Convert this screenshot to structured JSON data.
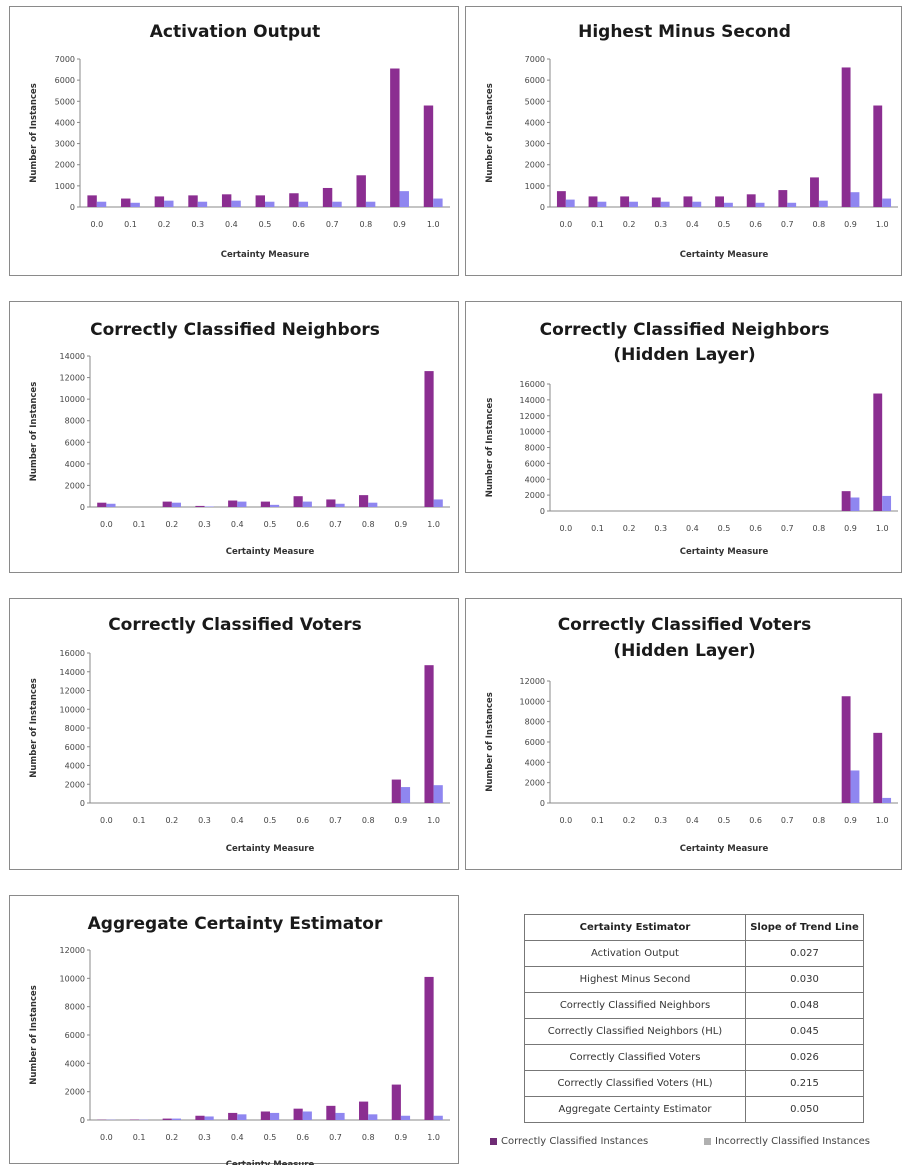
{
  "colors": {
    "correct": "#8b2e91",
    "incorrect": "#8f86f0",
    "axis": "#888888"
  },
  "chart_data": [
    {
      "type": "bar",
      "title": [
        "Activation Output"
      ],
      "xlabel": "Certainty Measure",
      "ylabel": "Number of Instances",
      "categories": [
        "0.0",
        "0.1",
        "0.2",
        "0.3",
        "0.4",
        "0.5",
        "0.6",
        "0.7",
        "0.8",
        "0.9",
        "1.0"
      ],
      "ylim": [
        0,
        7000
      ],
      "yticks": [
        0,
        1000,
        2000,
        3000,
        4000,
        5000,
        6000,
        7000
      ],
      "series": [
        {
          "name": "Correctly Classified Instances",
          "values": [
            550,
            400,
            500,
            550,
            600,
            550,
            650,
            900,
            1500,
            6550,
            4800
          ]
        },
        {
          "name": "Incorrectly Classified Instances",
          "values": [
            250,
            200,
            300,
            250,
            300,
            250,
            250,
            250,
            250,
            750,
            400
          ]
        }
      ]
    },
    {
      "type": "bar",
      "title": [
        "Highest Minus Second"
      ],
      "xlabel": "Certainty Measure",
      "ylabel": "Number of Instances",
      "categories": [
        "0.0",
        "0.1",
        "0.2",
        "0.3",
        "0.4",
        "0.5",
        "0.6",
        "0.7",
        "0.8",
        "0.9",
        "1.0"
      ],
      "ylim": [
        0,
        7000
      ],
      "yticks": [
        0,
        1000,
        2000,
        3000,
        4000,
        5000,
        6000,
        7000
      ],
      "series": [
        {
          "name": "Correctly Classified Instances",
          "values": [
            750,
            500,
            500,
            450,
            500,
            500,
            600,
            800,
            1400,
            6600,
            4800
          ]
        },
        {
          "name": "Incorrectly Classified Instances",
          "values": [
            350,
            250,
            250,
            250,
            250,
            200,
            200,
            200,
            300,
            700,
            400
          ]
        }
      ]
    },
    {
      "type": "bar",
      "title": [
        "Correctly Classified Neighbors"
      ],
      "xlabel": "Certainty Measure",
      "ylabel": "Number of Instances",
      "categories": [
        "0.0",
        "0.1",
        "0.2",
        "0.3",
        "0.4",
        "0.5",
        "0.6",
        "0.7",
        "0.8",
        "0.9",
        "1.0"
      ],
      "ylim": [
        0,
        14000
      ],
      "yticks": [
        0,
        2000,
        4000,
        6000,
        8000,
        10000,
        12000,
        14000
      ],
      "series": [
        {
          "name": "Correctly Classified Instances",
          "values": [
            400,
            0,
            500,
            100,
            600,
            500,
            1000,
            700,
            1100,
            0,
            12600
          ]
        },
        {
          "name": "Incorrectly Classified Instances",
          "values": [
            300,
            0,
            400,
            50,
            500,
            200,
            500,
            300,
            400,
            0,
            700
          ]
        }
      ]
    },
    {
      "type": "bar",
      "title": [
        "Correctly Classified Neighbors",
        "(Hidden Layer)"
      ],
      "xlabel": "Certainty Measure",
      "ylabel": "Number of Instances",
      "categories": [
        "0.0",
        "0.1",
        "0.2",
        "0.3",
        "0.4",
        "0.5",
        "0.6",
        "0.7",
        "0.8",
        "0.9",
        "1.0"
      ],
      "ylim": [
        0,
        16000
      ],
      "yticks": [
        0,
        2000,
        4000,
        6000,
        8000,
        10000,
        12000,
        14000,
        16000
      ],
      "series": [
        {
          "name": "Correctly Classified Instances",
          "values": [
            0,
            0,
            0,
            0,
            0,
            0,
            0,
            0,
            0,
            2500,
            14800
          ]
        },
        {
          "name": "Incorrectly Classified Instances",
          "values": [
            0,
            0,
            0,
            0,
            0,
            0,
            0,
            0,
            0,
            1700,
            1900
          ]
        }
      ]
    },
    {
      "type": "bar",
      "title": [
        "Correctly Classified Voters"
      ],
      "xlabel": "Certainty Measure",
      "ylabel": "Number of Instances",
      "categories": [
        "0.0",
        "0.1",
        "0.2",
        "0.3",
        "0.4",
        "0.5",
        "0.6",
        "0.7",
        "0.8",
        "0.9",
        "1.0"
      ],
      "ylim": [
        0,
        16000
      ],
      "yticks": [
        0,
        2000,
        4000,
        6000,
        8000,
        10000,
        12000,
        14000,
        16000
      ],
      "series": [
        {
          "name": "Correctly Classified Instances",
          "values": [
            0,
            0,
            0,
            0,
            0,
            0,
            0,
            0,
            0,
            2500,
            14700
          ]
        },
        {
          "name": "Incorrectly Classified Instances",
          "values": [
            0,
            0,
            0,
            0,
            0,
            0,
            0,
            0,
            0,
            1700,
            1900
          ]
        }
      ]
    },
    {
      "type": "bar",
      "title": [
        "Correctly Classified Voters",
        "(Hidden Layer)"
      ],
      "xlabel": "Certainty Measure",
      "ylabel": "Number of Instances",
      "categories": [
        "0.0",
        "0.1",
        "0.2",
        "0.3",
        "0.4",
        "0.5",
        "0.6",
        "0.7",
        "0.8",
        "0.9",
        "1.0"
      ],
      "ylim": [
        0,
        12000
      ],
      "yticks": [
        0,
        2000,
        4000,
        6000,
        8000,
        10000,
        12000
      ],
      "series": [
        {
          "name": "Correctly Classified Instances",
          "values": [
            0,
            0,
            0,
            0,
            0,
            0,
            0,
            0,
            0,
            10500,
            6900
          ]
        },
        {
          "name": "Incorrectly Classified Instances",
          "values": [
            0,
            0,
            0,
            0,
            0,
            0,
            0,
            0,
            0,
            3200,
            500
          ]
        }
      ]
    },
    {
      "type": "bar",
      "title": [
        "Aggregate Certainty Estimator"
      ],
      "xlabel": "Certainty Measure",
      "ylabel": "Number of Instances",
      "categories": [
        "0.0",
        "0.1",
        "0.2",
        "0.3",
        "0.4",
        "0.5",
        "0.6",
        "0.7",
        "0.8",
        "0.9",
        "1.0"
      ],
      "ylim": [
        0,
        12000
      ],
      "yticks": [
        0,
        2000,
        4000,
        6000,
        8000,
        10000,
        12000
      ],
      "series": [
        {
          "name": "Correctly Classified Instances",
          "values": [
            20,
            30,
            100,
            300,
            500,
            600,
            800,
            1000,
            1300,
            2500,
            10100
          ]
        },
        {
          "name": "Incorrectly Classified Instances",
          "values": [
            20,
            20,
            100,
            250,
            400,
            500,
            600,
            500,
            400,
            300,
            300
          ]
        }
      ]
    }
  ],
  "table": {
    "headers": [
      "Certainty Estimator",
      "Slope of Trend Line"
    ],
    "rows": [
      [
        "Activation Output",
        "0.027"
      ],
      [
        "Highest Minus Second",
        "0.030"
      ],
      [
        "Correctly Classified Neighbors",
        "0.048"
      ],
      [
        "Correctly Classified Neighbors (HL)",
        "0.045"
      ],
      [
        "Correctly Classified Voters",
        "0.026"
      ],
      [
        "Correctly Classified Voters (HL)",
        "0.215"
      ],
      [
        "Aggregate Certainty Estimator",
        "0.050"
      ]
    ]
  },
  "legend": {
    "correct": "Correctly Classified Instances",
    "incorrect": "Incorrectly Classified Instances"
  }
}
